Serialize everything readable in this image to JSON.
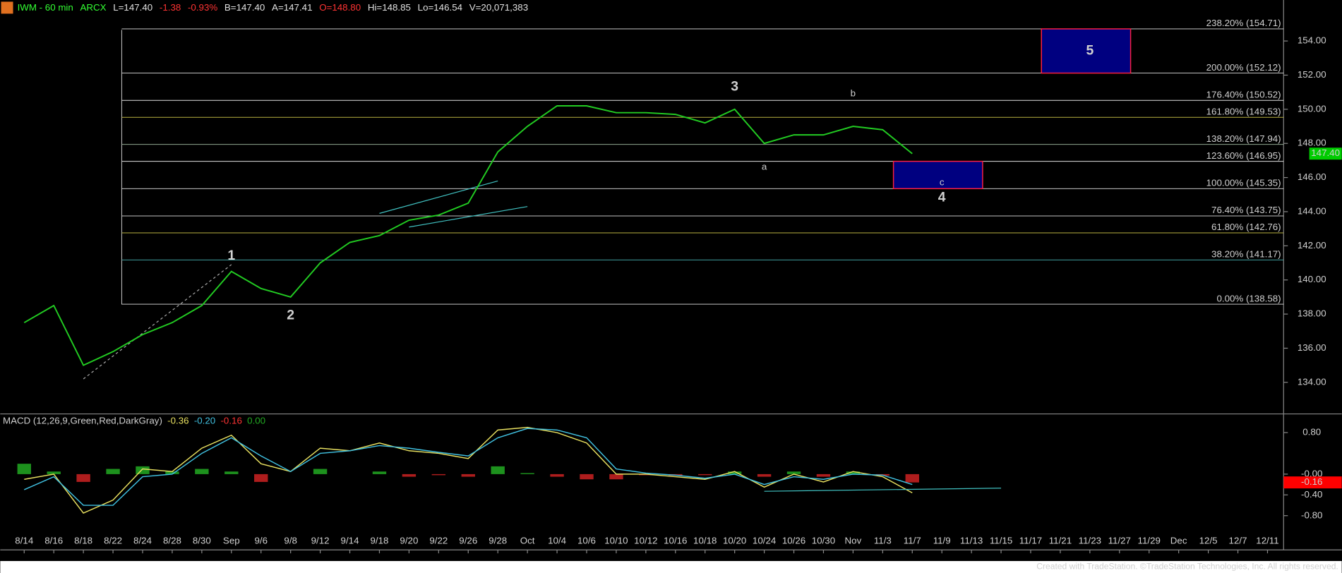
{
  "chart_data": {
    "type": "line",
    "header": [
      {
        "text": "IWM - 60 min",
        "color": "#33ff33"
      },
      {
        "text": "ARCX",
        "color": "#33ff33"
      },
      {
        "text": "L=147.40",
        "color": "#e0e0e0"
      },
      {
        "text": "-1.38",
        "color": "#ff3333"
      },
      {
        "text": "-0.93%",
        "color": "#ff3333"
      },
      {
        "text": "B=147.40",
        "color": "#e0e0e0"
      },
      {
        "text": "A=147.41",
        "color": "#e0e0e0"
      },
      {
        "text": "O=148.80",
        "color": "#ff3333"
      },
      {
        "text": "Hi=148.85",
        "color": "#e0e0e0"
      },
      {
        "text": "Lo=146.54",
        "color": "#e0e0e0"
      },
      {
        "text": "V=20,071,383",
        "color": "#e0e0e0"
      }
    ],
    "categories": [
      "8/14",
      "8/16",
      "8/18",
      "8/22",
      "8/24",
      "8/28",
      "8/30",
      "Sep",
      "9/6",
      "9/8",
      "9/12",
      "9/14",
      "9/18",
      "9/20",
      "9/22",
      "9/26",
      "9/28",
      "Oct",
      "10/4",
      "10/6",
      "10/10",
      "10/12",
      "10/16",
      "10/18",
      "10/20",
      "10/24",
      "10/26",
      "10/30",
      "Nov",
      "11/3",
      "11/7",
      "11/9",
      "11/13",
      "11/15",
      "11/17",
      "11/21",
      "11/23",
      "11/27",
      "11/29",
      "Dec",
      "12/5",
      "12/7",
      "12/11"
    ],
    "series": [
      {
        "name": "IWM",
        "color": "#22cc22",
        "values": [
          137.5,
          138.5,
          135,
          135.8,
          136.8,
          137.5,
          138.5,
          140.5,
          139.5,
          139,
          141,
          142.2,
          142.6,
          143.5,
          143.8,
          144.5,
          147.5,
          149,
          150.2,
          150.2,
          149.8,
          149.8,
          149.7,
          149.2,
          150,
          148,
          148.5,
          148.5,
          149,
          148.8,
          147.4,
          null,
          null,
          null,
          null,
          null,
          null,
          null,
          null,
          null,
          null,
          null,
          null
        ]
      }
    ],
    "ylim": [
      132.25,
      155.5
    ],
    "yticks": [
      {
        "value": 134,
        "label": "134.00"
      },
      {
        "value": 136,
        "label": "136.00"
      },
      {
        "value": 138,
        "label": "138.00"
      },
      {
        "value": 140,
        "label": "140.00"
      },
      {
        "value": 142,
        "label": "142.00"
      },
      {
        "value": 144,
        "label": "144.00"
      },
      {
        "value": 146,
        "label": "146.00"
      },
      {
        "value": 148,
        "label": "148.00"
      },
      {
        "value": 150,
        "label": "150.00"
      },
      {
        "value": 152,
        "label": "152.00"
      },
      {
        "value": 154,
        "label": "154.00"
      }
    ],
    "last_price": {
      "value": 147.4,
      "label": "147.40"
    },
    "fib_levels": [
      {
        "value": 154.71,
        "label": "238.20% (154.71)",
        "color": "#e0e0e0"
      },
      {
        "value": 152.12,
        "label": "200.00% (152.12)",
        "color": "#e0e0e0"
      },
      {
        "value": 150.52,
        "label": "176.40% (150.52)",
        "color": "#e0e0e0"
      },
      {
        "value": 149.53,
        "label": "161.80% (149.53)",
        "color": "#b8b040"
      },
      {
        "value": 147.94,
        "label": "138.20% (147.94)",
        "color": "#90a890"
      },
      {
        "value": 146.95,
        "label": "123.60% (146.95)",
        "color": "#e0e0e0"
      },
      {
        "value": 145.35,
        "label": "100.00% (145.35)",
        "color": "#e0e0e0"
      },
      {
        "value": 143.75,
        "label": "76.40% (143.75)",
        "color": "#c0c0c0"
      },
      {
        "value": 142.76,
        "label": "61.80% (142.76)",
        "color": "#b8b040"
      },
      {
        "value": 141.17,
        "label": "38.20% (141.17)",
        "color": "#40a0a0"
      },
      {
        "value": 138.58,
        "label": "0.00% (138.58)",
        "color": "#e0e0e0"
      }
    ],
    "zones": [
      {
        "label": "5",
        "from": "11/21",
        "to": "11/27",
        "low": 152.12,
        "high": 154.71
      },
      {
        "label": "4",
        "from": "11/7",
        "to": "11/13",
        "low": 145.35,
        "high": 146.95
      }
    ],
    "wave_labels": [
      {
        "text": "1",
        "x": "Sep",
        "y": 141.4,
        "big": true
      },
      {
        "text": "2",
        "x": "9/8",
        "y": 137.9,
        "big": true
      },
      {
        "text": "3",
        "x": "10/20",
        "y": 151.3,
        "big": true
      },
      {
        "text": "4",
        "x": "11/9",
        "y": 144.8,
        "big": true
      },
      {
        "text": "5",
        "x": "11/23",
        "y": 153.4,
        "big": true
      },
      {
        "text": "a",
        "x": "10/24",
        "y": 146.6,
        "big": false
      },
      {
        "text": "b",
        "x": "Nov",
        "y": 150.9,
        "big": false
      },
      {
        "text": "c",
        "x": "11/9",
        "y": 145.7,
        "big": false
      }
    ],
    "trendlines": [
      {
        "from": "8/18",
        "y1": 134.2,
        "to": "Sep",
        "y2": 140.9,
        "color": "#aaaaaa",
        "dashed": true
      },
      {
        "from": "9/18",
        "y1": 143.9,
        "to": "9/28",
        "y2": 145.8,
        "color": "#40c0c0",
        "dashed": false
      },
      {
        "from": "9/20",
        "y1": 143.1,
        "to": "Oct",
        "y2": 144.3,
        "color": "#40c0c0",
        "dashed": false
      }
    ],
    "macd": {
      "title": "MACD (12,26,9,Green,Red,DarkGray)",
      "readouts": [
        {
          "text": "-0.36",
          "color": "#e8e060"
        },
        {
          "text": "-0.20",
          "color": "#40c0e0"
        },
        {
          "text": "-0.16",
          "color": "#ff3333"
        },
        {
          "text": "0.00",
          "color": "#22aa22"
        }
      ],
      "ylim": [
        -1.41,
        1.11
      ],
      "yticks": [
        {
          "value": 0.8,
          "label": "0.80"
        },
        {
          "value": 0,
          "label": "-0.00"
        },
        {
          "value": -0.4,
          "label": "-0.40"
        },
        {
          "value": -0.8,
          "label": "-0.80"
        }
      ],
      "last": {
        "value": -0.16,
        "label": "-0.16"
      },
      "up_color": "#22aa22",
      "down_color": "#cc2222",
      "series": [
        {
          "name": "MACD",
          "color": "#e8e060",
          "values": [
            -0.1,
            0.0,
            -0.75,
            -0.5,
            0.1,
            0.05,
            0.5,
            0.75,
            0.2,
            0.05,
            0.5,
            0.45,
            0.6,
            0.45,
            0.4,
            0.3,
            0.85,
            0.9,
            0.8,
            0.6,
            0.0,
            0.0,
            -0.05,
            -0.1,
            0.05,
            -0.25,
            0.0,
            -0.15,
            0.05,
            -0.05,
            -0.36,
            null,
            null,
            null,
            null,
            null,
            null,
            null,
            null,
            null,
            null,
            null,
            null
          ]
        },
        {
          "name": "Signal",
          "color": "#40c0e0",
          "values": [
            -0.3,
            -0.05,
            -0.6,
            -0.6,
            -0.05,
            0.0,
            0.4,
            0.7,
            0.35,
            0.05,
            0.4,
            0.45,
            0.55,
            0.5,
            0.42,
            0.35,
            0.7,
            0.88,
            0.85,
            0.7,
            0.1,
            0.02,
            -0.02,
            -0.08,
            0.0,
            -0.2,
            -0.05,
            -0.1,
            0.0,
            -0.02,
            -0.2,
            null,
            null,
            null,
            null,
            null,
            null,
            null,
            null,
            null,
            null,
            null,
            null
          ]
        },
        {
          "name": "Histogram",
          "values": [
            0.2,
            0.05,
            -0.15,
            0.1,
            0.15,
            0.05,
            0.1,
            0.05,
            -0.15,
            0.0,
            0.1,
            0.0,
            0.05,
            -0.05,
            -0.02,
            -0.05,
            0.15,
            0.02,
            -0.05,
            -0.1,
            -0.1,
            -0.02,
            -0.03,
            -0.02,
            0.05,
            -0.05,
            0.05,
            -0.05,
            0.05,
            -0.03,
            -0.16,
            null,
            null,
            null,
            null,
            null,
            null,
            null,
            null,
            null,
            null,
            null,
            null
          ]
        }
      ],
      "trendline": {
        "from": "10/24",
        "y1": -0.33,
        "to": "11/15",
        "y2": -0.27,
        "color": "#40c0c0"
      }
    },
    "footer": "Created with TradeStation. ©TradeStation Technologies, Inc. All rights reserved."
  }
}
